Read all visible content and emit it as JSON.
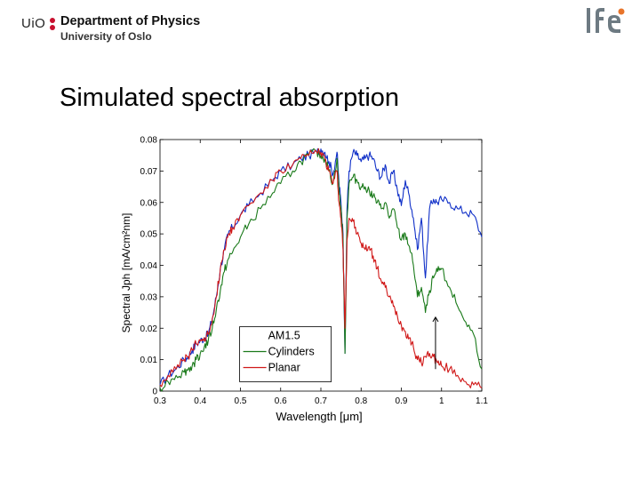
{
  "header": {
    "uio_text": "UiO",
    "department": "Department of Physics",
    "university": "University of Oslo",
    "logo_text": "IFE"
  },
  "slide": {
    "title": "Simulated spectral absorption"
  },
  "colors": {
    "am15": "#1030c8",
    "cylinders": "#1a7a1a",
    "planar": "#d01818",
    "uio_red": "#c8102e",
    "ife_gray": "#6d7a82",
    "ife_orange": "#e8742a"
  },
  "chart_data": {
    "type": "line",
    "xlabel": "Wavelength [μm]",
    "ylabel": "Spectral Jph [mA/cm²nm]",
    "xlim": [
      0.3,
      1.1
    ],
    "ylim": [
      0,
      0.08
    ],
    "xticks": [
      "0.3",
      "0.4",
      "0.5",
      "0.6",
      "0.7",
      "0.8",
      "0.9",
      "1",
      "1.1"
    ],
    "yticks": [
      "0",
      "0.01",
      "0.02",
      "0.03",
      "0.04",
      "0.05",
      "0.06",
      "0.07",
      "0.08"
    ],
    "legend_position": "lower-center",
    "annotation": "arrow near 1.0 μm",
    "series": [
      {
        "name": "AM1.5",
        "color": "#1030c8",
        "x": [
          0.3,
          0.32,
          0.34,
          0.36,
          0.37,
          0.38,
          0.39,
          0.4,
          0.41,
          0.42,
          0.43,
          0.44,
          0.45,
          0.46,
          0.47,
          0.48,
          0.5,
          0.52,
          0.55,
          0.58,
          0.6,
          0.63,
          0.65,
          0.67,
          0.69,
          0.7,
          0.71,
          0.72,
          0.73,
          0.74,
          0.745,
          0.75,
          0.755,
          0.76,
          0.765,
          0.77,
          0.78,
          0.79,
          0.8,
          0.81,
          0.82,
          0.83,
          0.84,
          0.85,
          0.86,
          0.87,
          0.88,
          0.89,
          0.9,
          0.91,
          0.92,
          0.93,
          0.94,
          0.95,
          0.96,
          0.97,
          0.98,
          0.99,
          1.0,
          1.02,
          1.04,
          1.06,
          1.08,
          1.1
        ],
        "y": [
          0.002,
          0.005,
          0.007,
          0.01,
          0.011,
          0.013,
          0.015,
          0.016,
          0.017,
          0.018,
          0.023,
          0.03,
          0.039,
          0.045,
          0.05,
          0.052,
          0.056,
          0.059,
          0.063,
          0.067,
          0.07,
          0.072,
          0.074,
          0.075,
          0.076,
          0.077,
          0.076,
          0.073,
          0.069,
          0.076,
          0.066,
          0.06,
          0.05,
          0.012,
          0.058,
          0.07,
          0.076,
          0.075,
          0.073,
          0.074,
          0.075,
          0.074,
          0.07,
          0.068,
          0.072,
          0.066,
          0.07,
          0.064,
          0.059,
          0.067,
          0.062,
          0.055,
          0.045,
          0.055,
          0.036,
          0.058,
          0.061,
          0.06,
          0.061,
          0.06,
          0.058,
          0.057,
          0.056,
          0.049
        ]
      },
      {
        "name": "Cylinders",
        "color": "#1a7a1a",
        "x": [
          0.3,
          0.32,
          0.34,
          0.36,
          0.37,
          0.38,
          0.39,
          0.4,
          0.41,
          0.42,
          0.43,
          0.44,
          0.45,
          0.46,
          0.47,
          0.48,
          0.5,
          0.52,
          0.55,
          0.58,
          0.6,
          0.63,
          0.65,
          0.67,
          0.69,
          0.7,
          0.71,
          0.72,
          0.73,
          0.74,
          0.745,
          0.75,
          0.755,
          0.76,
          0.765,
          0.77,
          0.78,
          0.79,
          0.8,
          0.81,
          0.82,
          0.83,
          0.84,
          0.85,
          0.86,
          0.87,
          0.88,
          0.89,
          0.9,
          0.91,
          0.92,
          0.93,
          0.94,
          0.95,
          0.96,
          0.97,
          0.98,
          0.99,
          1.0,
          1.02,
          1.04,
          1.06,
          1.08,
          1.1
        ],
        "y": [
          0.001,
          0.003,
          0.005,
          0.006,
          0.007,
          0.008,
          0.01,
          0.012,
          0.014,
          0.016,
          0.02,
          0.026,
          0.032,
          0.038,
          0.042,
          0.044,
          0.049,
          0.053,
          0.058,
          0.063,
          0.066,
          0.07,
          0.073,
          0.075,
          0.076,
          0.075,
          0.074,
          0.07,
          0.066,
          0.074,
          0.064,
          0.058,
          0.048,
          0.012,
          0.055,
          0.066,
          0.068,
          0.067,
          0.065,
          0.065,
          0.064,
          0.062,
          0.06,
          0.058,
          0.06,
          0.055,
          0.058,
          0.052,
          0.048,
          0.05,
          0.046,
          0.04,
          0.03,
          0.033,
          0.025,
          0.032,
          0.036,
          0.038,
          0.039,
          0.033,
          0.027,
          0.022,
          0.018,
          0.007
        ]
      },
      {
        "name": "Planar",
        "color": "#d01818",
        "x": [
          0.3,
          0.32,
          0.34,
          0.36,
          0.37,
          0.38,
          0.39,
          0.4,
          0.41,
          0.42,
          0.43,
          0.44,
          0.45,
          0.46,
          0.47,
          0.48,
          0.5,
          0.52,
          0.55,
          0.58,
          0.6,
          0.63,
          0.65,
          0.67,
          0.69,
          0.7,
          0.71,
          0.72,
          0.73,
          0.74,
          0.745,
          0.75,
          0.755,
          0.76,
          0.765,
          0.77,
          0.78,
          0.79,
          0.8,
          0.81,
          0.82,
          0.83,
          0.84,
          0.85,
          0.86,
          0.87,
          0.88,
          0.89,
          0.9,
          0.91,
          0.92,
          0.93,
          0.94,
          0.95,
          0.96,
          0.97,
          0.98,
          0.99,
          1.0,
          1.02,
          1.04,
          1.06,
          1.08,
          1.1
        ],
        "y": [
          0.002,
          0.005,
          0.007,
          0.01,
          0.011,
          0.013,
          0.015,
          0.016,
          0.017,
          0.018,
          0.023,
          0.03,
          0.039,
          0.045,
          0.05,
          0.052,
          0.056,
          0.059,
          0.063,
          0.067,
          0.07,
          0.072,
          0.074,
          0.075,
          0.076,
          0.076,
          0.074,
          0.07,
          0.066,
          0.07,
          0.06,
          0.055,
          0.045,
          0.02,
          0.048,
          0.055,
          0.054,
          0.05,
          0.047,
          0.045,
          0.046,
          0.043,
          0.039,
          0.035,
          0.033,
          0.03,
          0.027,
          0.024,
          0.021,
          0.019,
          0.017,
          0.014,
          0.01,
          0.009,
          0.011,
          0.012,
          0.011,
          0.009,
          0.008,
          0.007,
          0.005,
          0.003,
          0.002,
          0.001
        ]
      }
    ]
  }
}
